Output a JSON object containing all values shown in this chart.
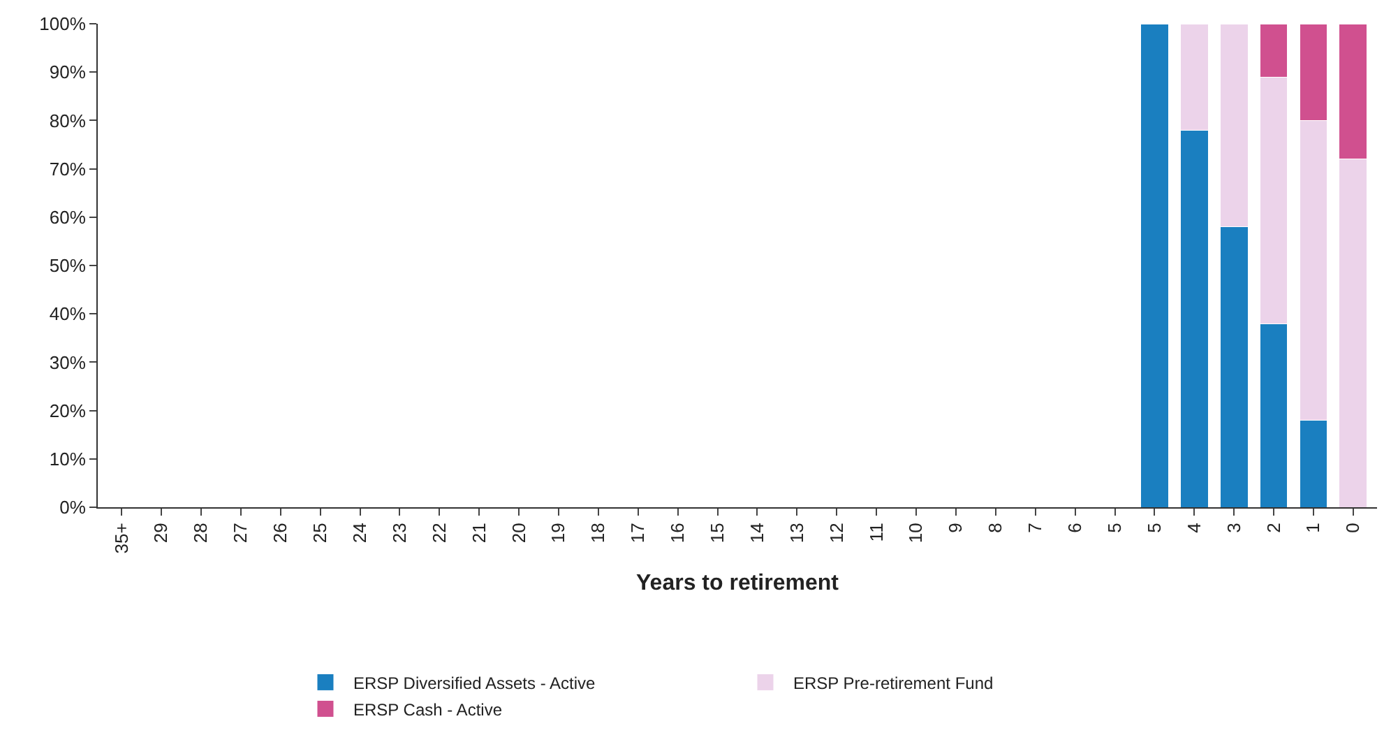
{
  "chart_data": {
    "type": "bar",
    "stacked": true,
    "xlabel": "Years to retirement",
    "categories": [
      "35+",
      "29",
      "28",
      "27",
      "26",
      "25",
      "24",
      "23",
      "22",
      "21",
      "20",
      "19",
      "18",
      "17",
      "16",
      "15",
      "14",
      "13",
      "12",
      "11",
      "10",
      "9",
      "8",
      "7",
      "6",
      "5",
      "5",
      "4",
      "3",
      "2",
      "1",
      "0"
    ],
    "series": [
      {
        "name": "ERSP Diversified Assets - Active",
        "color": "#1a7fc0",
        "values": [
          null,
          null,
          null,
          null,
          null,
          null,
          null,
          null,
          null,
          null,
          null,
          null,
          null,
          null,
          null,
          null,
          null,
          null,
          null,
          null,
          null,
          null,
          null,
          null,
          null,
          null,
          100,
          78,
          58,
          38,
          18,
          null
        ]
      },
      {
        "name": "ERSP Pre-retirement Fund",
        "color": "#ecd3ea",
        "values": [
          null,
          null,
          null,
          null,
          null,
          null,
          null,
          null,
          null,
          null,
          null,
          null,
          null,
          null,
          null,
          null,
          null,
          null,
          null,
          null,
          null,
          null,
          null,
          null,
          null,
          null,
          null,
          22,
          42,
          51,
          62,
          72
        ]
      },
      {
        "name": "ERSP Cash - Active",
        "color": "#d0508f",
        "values": [
          null,
          null,
          null,
          null,
          null,
          null,
          null,
          null,
          null,
          null,
          null,
          null,
          null,
          null,
          null,
          null,
          null,
          null,
          null,
          null,
          null,
          null,
          null,
          null,
          null,
          null,
          null,
          null,
          null,
          11,
          20,
          28
        ]
      }
    ],
    "ylim": [
      0,
      100
    ],
    "yticks": [
      {
        "value": 0,
        "label": "0%"
      },
      {
        "value": 10,
        "label": "10%"
      },
      {
        "value": 20,
        "label": "20%"
      },
      {
        "value": 30,
        "label": "30%"
      },
      {
        "value": 40,
        "label": "40%"
      },
      {
        "value": 50,
        "label": "50%"
      },
      {
        "value": 60,
        "label": "60%"
      },
      {
        "value": 70,
        "label": "70%"
      },
      {
        "value": 80,
        "label": "80%"
      },
      {
        "value": 90,
        "label": "90%"
      },
      {
        "value": 100,
        "label": "100%"
      }
    ],
    "grid": false,
    "legend": "bottom"
  }
}
